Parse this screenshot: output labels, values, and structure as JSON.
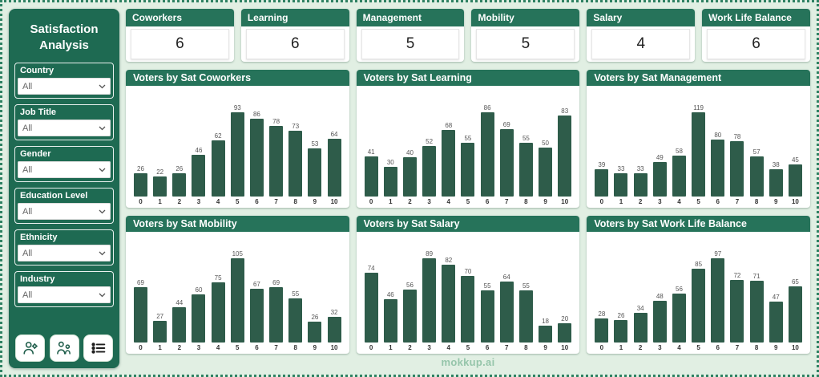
{
  "sidebar": {
    "title": "Satisfaction Analysis",
    "filters": [
      {
        "label": "Country",
        "value": "All"
      },
      {
        "label": "Job Title",
        "value": "All"
      },
      {
        "label": "Gender",
        "value": "All"
      },
      {
        "label": "Education Level",
        "value": "All"
      },
      {
        "label": "Ethnicity",
        "value": "All"
      },
      {
        "label": "Industry",
        "value": "All"
      }
    ],
    "footer_icons": [
      "person-gear-icon",
      "people-icon",
      "list-icon"
    ]
  },
  "kpis": [
    {
      "label": "Coworkers",
      "value": "6"
    },
    {
      "label": "Learning",
      "value": "6"
    },
    {
      "label": "Management",
      "value": "5"
    },
    {
      "label": "Mobility",
      "value": "5"
    },
    {
      "label": "Salary",
      "value": "4"
    },
    {
      "label": "Work Life Balance",
      "value": "6"
    }
  ],
  "chart_data": [
    {
      "type": "bar",
      "title": "Voters by Sat Coworkers",
      "categories": [
        "0",
        "1",
        "2",
        "3",
        "4",
        "5",
        "6",
        "7",
        "8",
        "9",
        "10"
      ],
      "values": [
        26,
        22,
        26,
        46,
        62,
        93,
        86,
        78,
        73,
        53,
        64
      ]
    },
    {
      "type": "bar",
      "title": "Voters by Sat Learning",
      "categories": [
        "0",
        "1",
        "2",
        "3",
        "4",
        "5",
        "6",
        "7",
        "8",
        "9",
        "10"
      ],
      "values": [
        41,
        30,
        40,
        52,
        68,
        55,
        86,
        69,
        55,
        50,
        83
      ]
    },
    {
      "type": "bar",
      "title": "Voters by Sat Management",
      "categories": [
        "0",
        "1",
        "2",
        "3",
        "4",
        "5",
        "6",
        "7",
        "8",
        "9",
        "10"
      ],
      "values": [
        39,
        33,
        33,
        49,
        58,
        119,
        80,
        78,
        57,
        38,
        45
      ]
    },
    {
      "type": "bar",
      "title": "Voters by Sat Mobility",
      "categories": [
        "0",
        "1",
        "2",
        "3",
        "4",
        "5",
        "6",
        "7",
        "8",
        "9",
        "10"
      ],
      "values": [
        69,
        27,
        44,
        60,
        75,
        105,
        67,
        69,
        55,
        26,
        32
      ]
    },
    {
      "type": "bar",
      "title": "Voters by Sat Salary",
      "categories": [
        "0",
        "1",
        "2",
        "3",
        "4",
        "5",
        "6",
        "7",
        "8",
        "9",
        "10"
      ],
      "values": [
        74,
        46,
        56,
        89,
        82,
        70,
        55,
        64,
        55,
        18,
        20
      ]
    },
    {
      "type": "bar",
      "title": "Voters by Sat Work Life Balance",
      "categories": [
        "0",
        "1",
        "2",
        "3",
        "4",
        "5",
        "6",
        "7",
        "8",
        "9",
        "10"
      ],
      "values": [
        28,
        26,
        34,
        48,
        56,
        85,
        97,
        72,
        71,
        47,
        65
      ]
    }
  ],
  "watermark": "mokkup.ai",
  "colors": {
    "header_green": "#26735a",
    "sidebar_green": "#1e6a52",
    "bar_green": "#2e5c4a",
    "page_background": "#e1efe3",
    "border_green": "#2e8162"
  }
}
